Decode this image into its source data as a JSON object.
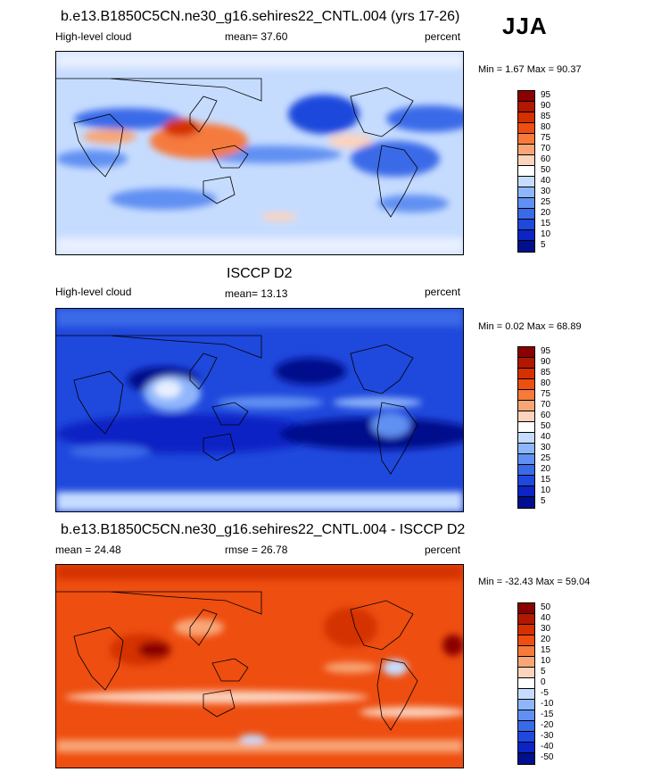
{
  "season": "JJA",
  "panels": [
    {
      "title": "b.e13.B1850C5CN.ne30_g16.sehires22_CNTL.004 (yrs 17-26)",
      "left_label": "High-level cloud",
      "center_label": "mean=  37.60",
      "right_label": "percent",
      "minmax": "Min =   1.67 Max =  90.37",
      "colorbar_labels": [
        "95",
        "90",
        "85",
        "80",
        "75",
        "70",
        "60",
        "50",
        "40",
        "30",
        "25",
        "20",
        "15",
        "10",
        "5"
      ],
      "colors": [
        "#8b0000",
        "#b01800",
        "#d43000",
        "#ee4e10",
        "#f57a3c",
        "#f8a677",
        "#fcd3bd",
        "#ffffff",
        "#c6dcff",
        "#8fb6fa",
        "#6190f2",
        "#3a6ae8",
        "#1f48dc",
        "#0b24c4",
        "#00108c"
      ]
    },
    {
      "title": "ISCCP D2",
      "left_label": "High-level cloud",
      "center_label": "mean=  13.13",
      "right_label": "percent",
      "minmax": "Min =   0.02 Max =  68.89",
      "colorbar_labels": [
        "95",
        "90",
        "85",
        "80",
        "75",
        "70",
        "60",
        "50",
        "40",
        "30",
        "25",
        "20",
        "15",
        "10",
        "5"
      ],
      "colors": [
        "#8b0000",
        "#b01800",
        "#d43000",
        "#ee4e10",
        "#f57a3c",
        "#f8a677",
        "#fcd3bd",
        "#ffffff",
        "#c6dcff",
        "#8fb6fa",
        "#6190f2",
        "#3a6ae8",
        "#1f48dc",
        "#0b24c4",
        "#00108c"
      ]
    },
    {
      "title": "b.e13.B1850C5CN.ne30_g16.sehires22_CNTL.004 - ISCCP D2",
      "left_label": "mean =  24.48",
      "center_label": "rmse =  26.78",
      "right_label": "percent",
      "minmax": "Min = -32.43 Max =  59.04",
      "colorbar_labels": [
        "50",
        "40",
        "30",
        "20",
        "15",
        "10",
        "5",
        "0",
        "-5",
        "-10",
        "-15",
        "-20",
        "-30",
        "-40",
        "-50"
      ],
      "colors": [
        "#8b0000",
        "#b01800",
        "#d43000",
        "#ee4e10",
        "#f57a3c",
        "#f8a677",
        "#fcd3bd",
        "#ffffff",
        "#c6dcff",
        "#8fb6fa",
        "#6190f2",
        "#3a6ae8",
        "#1f48dc",
        "#0b24c4",
        "#00108c"
      ]
    }
  ]
}
